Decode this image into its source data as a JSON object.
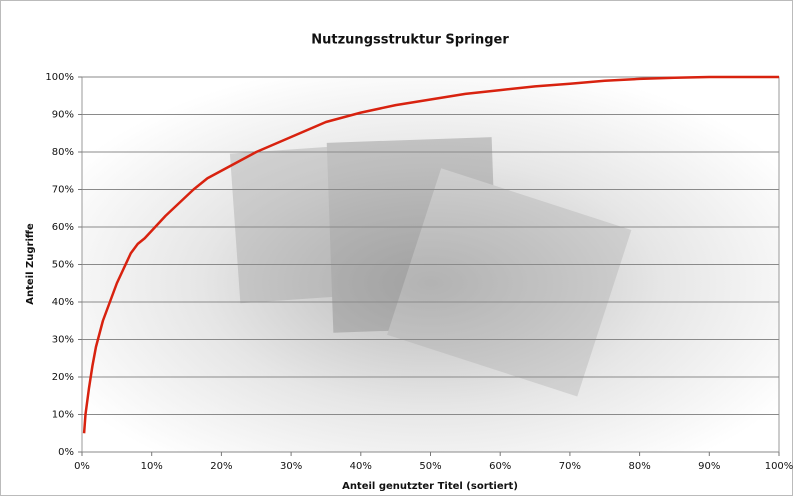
{
  "chart_data": {
    "type": "line",
    "title": "Nutzungsstruktur Springer",
    "xlabel": "Anteil genutzter Titel (sortiert)",
    "ylabel": "Anteil Zugriffe",
    "series": [
      {
        "color": "#d8220f",
        "x": [
          0.3,
          0.5,
          1,
          1.5,
          2,
          3,
          4,
          5,
          6,
          7,
          8,
          9,
          10,
          12,
          14,
          16,
          18,
          20,
          25,
          30,
          35,
          40,
          45,
          50,
          55,
          60,
          65,
          70,
          75,
          80,
          85,
          90,
          95,
          100
        ],
        "values": [
          5,
          10,
          17,
          23,
          28,
          35,
          40,
          45,
          49,
          53,
          55.5,
          57,
          59,
          63,
          66.5,
          70,
          73,
          75,
          80,
          84,
          88,
          90.5,
          92.5,
          94,
          95.5,
          96.5,
          97.5,
          98.2,
          99,
          99.5,
          99.8,
          100,
          100,
          100
        ]
      }
    ],
    "xlim": [
      0,
      100
    ],
    "ylim": [
      0,
      100
    ],
    "xticks": [
      {
        "value": 0,
        "label": "0%"
      },
      {
        "value": 10,
        "label": "10%"
      },
      {
        "value": 20,
        "label": "20%"
      },
      {
        "value": 30,
        "label": "30%"
      },
      {
        "value": 40,
        "label": "40%"
      },
      {
        "value": 50,
        "label": "50%"
      },
      {
        "value": 60,
        "label": "60%"
      },
      {
        "value": 70,
        "label": "70%"
      },
      {
        "value": 80,
        "label": "80%"
      },
      {
        "value": 90,
        "label": "90%"
      },
      {
        "value": 100,
        "label": "100%"
      }
    ],
    "yticks": [
      {
        "value": 0,
        "label": "0%"
      },
      {
        "value": 10,
        "label": "10%"
      },
      {
        "value": 20,
        "label": "20%"
      },
      {
        "value": 30,
        "label": "30%"
      },
      {
        "value": 40,
        "label": "40%"
      },
      {
        "value": 50,
        "label": "50%"
      },
      {
        "value": 60,
        "label": "60%"
      },
      {
        "value": 70,
        "label": "70%"
      },
      {
        "value": 80,
        "label": "80%"
      },
      {
        "value": 90,
        "label": "90%"
      },
      {
        "value": 100,
        "label": "100%"
      }
    ],
    "grid": true
  }
}
